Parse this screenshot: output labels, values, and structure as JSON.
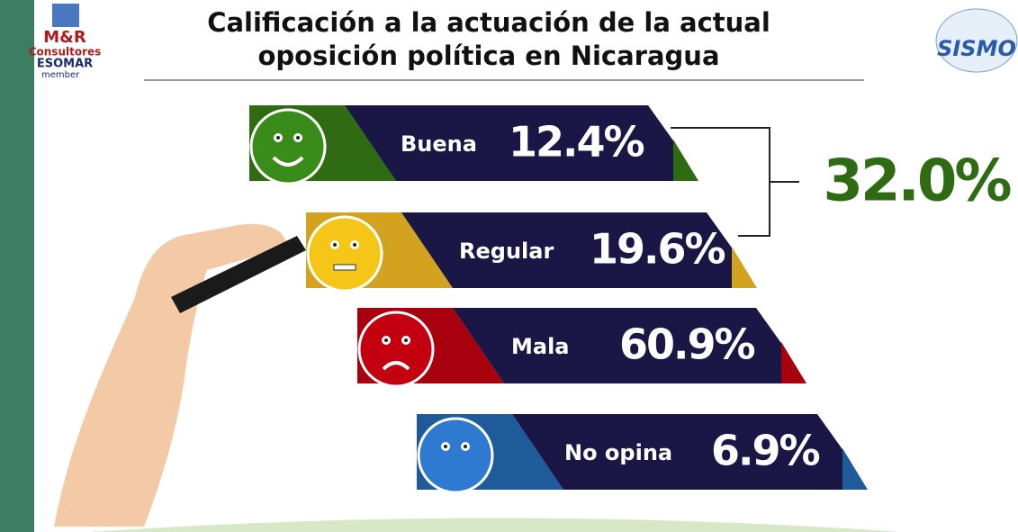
{
  "header": {
    "title": [
      "Calificación a la actuación de la actual",
      "oposición política en Nicaragua"
    ]
  },
  "logos": {
    "left": {
      "brand": "M&R",
      "sub": "Consultores",
      "org": "ESOMAR",
      "member": "member"
    },
    "right": "SISMO"
  },
  "ratings": [
    {
      "label": "Buena",
      "value": "12.4%"
    },
    {
      "label": "Regular",
      "value": "19.6%"
    },
    {
      "label": "Mala",
      "value": "60.9%"
    },
    {
      "label": "No opina",
      "value": "6.9%"
    }
  ],
  "total": "32.0%"
}
